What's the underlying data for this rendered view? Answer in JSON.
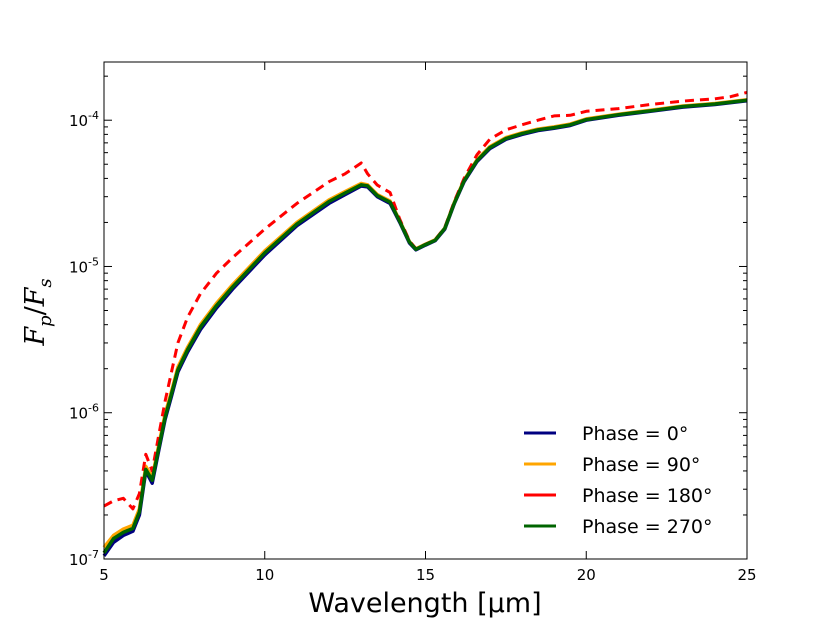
{
  "chart_data": {
    "type": "line",
    "xlabel": "Wavelength [μm]",
    "ylabel": {
      "main": "F",
      "num_sub": "p",
      "slash": "/",
      "den": "F",
      "den_sub": "s"
    },
    "xlim": [
      5,
      25
    ],
    "ylim": [
      1e-07,
      0.00025
    ],
    "yscale": "log",
    "x_ticks": [
      5,
      10,
      15,
      20,
      25
    ],
    "x_tick_labels": [
      "5",
      "10",
      "15",
      "20",
      "25"
    ],
    "y_ticks": [
      {
        "value": 1e-07,
        "base": "10",
        "exp": "-7"
      },
      {
        "value": 1e-06,
        "base": "10",
        "exp": "-6"
      },
      {
        "value": 1e-05,
        "base": "10",
        "exp": "-5"
      },
      {
        "value": 0.0001,
        "base": "10",
        "exp": "-4"
      }
    ],
    "legend_position": "bottom-right",
    "series": [
      {
        "name": "Phase = 0°",
        "color": "#000080",
        "dash": "solid",
        "x": [
          5.0,
          5.3,
          5.6,
          5.9,
          6.1,
          6.3,
          6.5,
          6.7,
          6.9,
          7.1,
          7.3,
          7.6,
          8.0,
          8.5,
          9.0,
          10.0,
          11.0,
          12.0,
          12.5,
          13.0,
          13.2,
          13.5,
          13.9,
          14.2,
          14.5,
          14.7,
          15.0,
          15.3,
          15.6,
          15.9,
          16.2,
          16.6,
          17.0,
          17.5,
          18.0,
          18.5,
          19.0,
          19.5,
          20.0,
          21.0,
          22.0,
          23.0,
          24.0,
          24.5,
          25.0
        ],
        "values": [
          1.05e-07,
          1.3e-07,
          1.45e-07,
          1.55e-07,
          2e-07,
          4e-07,
          3.3e-07,
          5.5e-07,
          9e-07,
          1.3e-06,
          1.9e-06,
          2.6e-06,
          3.7e-06,
          5.2e-06,
          7e-06,
          1.2e-05,
          1.9e-05,
          2.7e-05,
          3.1e-05,
          3.55e-05,
          3.5e-05,
          3e-05,
          2.7e-05,
          2e-05,
          1.45e-05,
          1.3e-05,
          1.4e-05,
          1.5e-05,
          1.8e-05,
          2.7e-05,
          3.8e-05,
          5.2e-05,
          6.4e-05,
          7.4e-05,
          8e-05,
          8.5e-05,
          8.8e-05,
          9.2e-05,
          0.0001,
          0.000108,
          0.000115,
          0.000123,
          0.000128,
          0.000132,
          0.000136
        ]
      },
      {
        "name": "Phase = 90°",
        "color": "#ffa500",
        "dash": "solid",
        "x": [
          5.0,
          5.3,
          5.6,
          5.9,
          6.1,
          6.3,
          6.5,
          6.7,
          6.9,
          7.1,
          7.3,
          7.6,
          8.0,
          8.5,
          9.0,
          10.0,
          11.0,
          12.0,
          12.5,
          13.0,
          13.2,
          13.5,
          13.9,
          14.2,
          14.5,
          14.7,
          15.0,
          15.3,
          15.6,
          15.9,
          16.2,
          16.6,
          17.0,
          17.5,
          18.0,
          18.5,
          19.0,
          19.5,
          20.0,
          21.0,
          22.0,
          23.0,
          24.0,
          24.5,
          25.0
        ],
        "values": [
          1.2e-07,
          1.45e-07,
          1.6e-07,
          1.7e-07,
          2.2e-07,
          4.3e-07,
          3.6e-07,
          6e-07,
          9.8e-07,
          1.4e-06,
          2.05e-06,
          2.8e-06,
          4e-06,
          5.6e-06,
          7.5e-06,
          1.28e-05,
          2e-05,
          2.85e-05,
          3.25e-05,
          3.7e-05,
          3.62e-05,
          3.1e-05,
          2.8e-05,
          2.05e-05,
          1.48e-05,
          1.32e-05,
          1.42e-05,
          1.52e-05,
          1.83e-05,
          2.75e-05,
          3.9e-05,
          5.35e-05,
          6.6e-05,
          7.6e-05,
          8.2e-05,
          8.7e-05,
          9e-05,
          9.4e-05,
          0.000102,
          0.00011,
          0.000117,
          0.000125,
          0.00013,
          0.000134,
          0.000138
        ]
      },
      {
        "name": "Phase = 180°",
        "color": "#ff0000",
        "dash": "dashed",
        "x": [
          5.0,
          5.3,
          5.6,
          5.9,
          6.1,
          6.3,
          6.5,
          6.7,
          6.9,
          7.1,
          7.3,
          7.6,
          8.0,
          8.5,
          9.0,
          10.0,
          11.0,
          12.0,
          12.5,
          13.0,
          13.2,
          13.5,
          13.9,
          14.2,
          14.5,
          14.7,
          15.0,
          15.3,
          15.6,
          15.9,
          16.2,
          16.6,
          17.0,
          17.5,
          18.0,
          18.5,
          19.0,
          19.5,
          20.0,
          21.0,
          22.0,
          23.0,
          24.0,
          24.5,
          25.0
        ],
        "values": [
          2.3e-07,
          2.5e-07,
          2.6e-07,
          2.2e-07,
          2.8e-07,
          5.2e-07,
          4e-07,
          7e-07,
          1.2e-06,
          1.9e-06,
          3e-06,
          4.5e-06,
          6.5e-06,
          9e-06,
          1.15e-05,
          1.8e-05,
          2.7e-05,
          3.8e-05,
          4.3e-05,
          5.1e-05,
          4.3e-05,
          3.6e-05,
          3.2e-05,
          2.1e-05,
          1.5e-05,
          1.32e-05,
          1.42e-05,
          1.52e-05,
          1.85e-05,
          2.8e-05,
          4e-05,
          5.8e-05,
          7.4e-05,
          8.6e-05,
          9.3e-05,
          0.0001,
          0.000107,
          0.000108,
          0.000115,
          0.00012,
          0.000128,
          0.000135,
          0.00014,
          0.000145,
          0.000155
        ]
      },
      {
        "name": "Phase = 270°",
        "color": "#006400",
        "dash": "solid",
        "x": [
          5.0,
          5.3,
          5.6,
          5.9,
          6.1,
          6.3,
          6.5,
          6.7,
          6.9,
          7.1,
          7.3,
          7.6,
          8.0,
          8.5,
          9.0,
          10.0,
          11.0,
          12.0,
          12.5,
          13.0,
          13.2,
          13.5,
          13.9,
          14.2,
          14.5,
          14.7,
          15.0,
          15.3,
          15.6,
          15.9,
          16.2,
          16.6,
          17.0,
          17.5,
          18.0,
          18.5,
          19.0,
          19.5,
          20.0,
          21.0,
          22.0,
          23.0,
          24.0,
          24.5,
          25.0
        ],
        "values": [
          1.1e-07,
          1.38e-07,
          1.52e-07,
          1.62e-07,
          2.1e-07,
          4.1e-07,
          3.45e-07,
          5.7e-07,
          9.3e-07,
          1.35e-06,
          1.97e-06,
          2.7e-06,
          3.85e-06,
          5.4e-06,
          7.25e-06,
          1.24e-05,
          1.95e-05,
          2.78e-05,
          3.18e-05,
          3.62e-05,
          3.56e-05,
          3.05e-05,
          2.75e-05,
          2.03e-05,
          1.47e-05,
          1.31e-05,
          1.41e-05,
          1.51e-05,
          1.82e-05,
          2.72e-05,
          3.85e-05,
          5.28e-05,
          6.5e-05,
          7.5e-05,
          8.1e-05,
          8.6e-05,
          8.9e-05,
          9.3e-05,
          0.000101,
          0.000109,
          0.000116,
          0.000124,
          0.000129,
          0.000133,
          0.000137
        ]
      }
    ]
  }
}
